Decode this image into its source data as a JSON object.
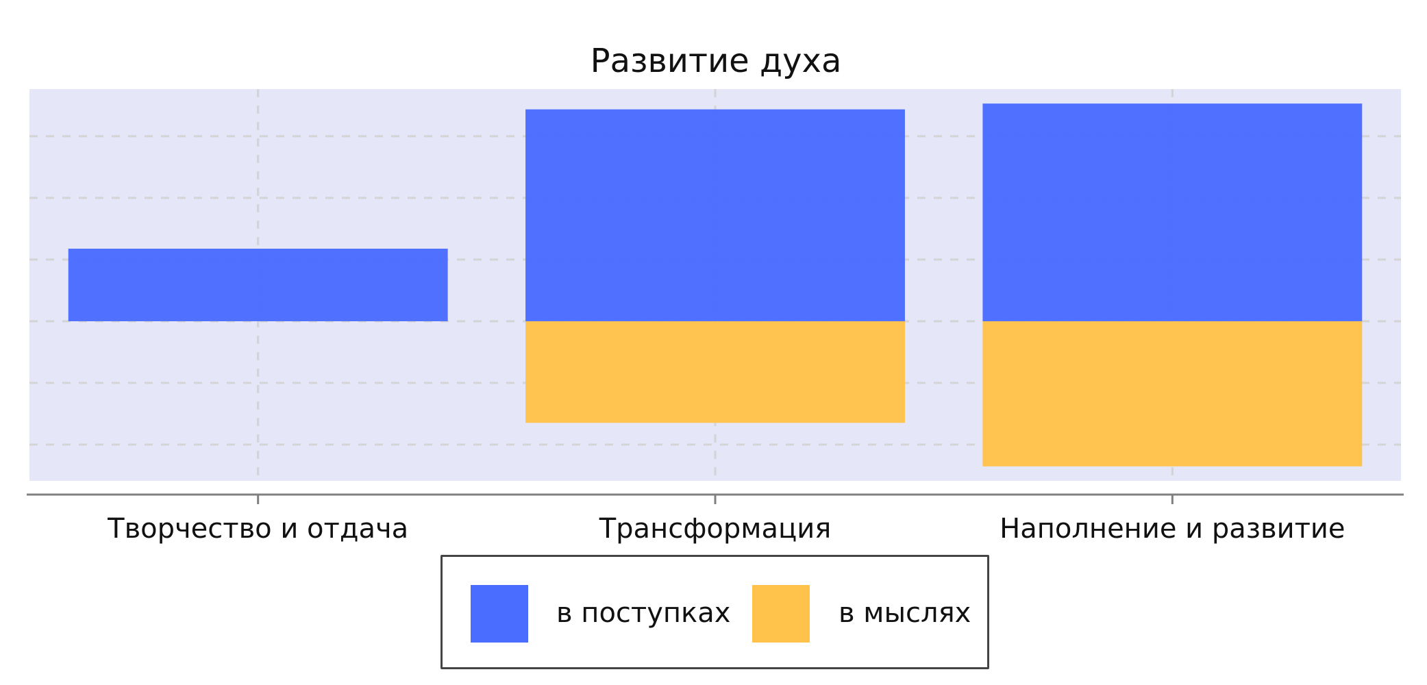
{
  "chart_data": {
    "type": "bar",
    "stacked": true,
    "title": "Развитие духа",
    "categories": [
      "Творчество и отдача",
      "Трансформация",
      "Наполнение и развитие"
    ],
    "series": [
      {
        "name": "в поступках",
        "color": "#4a6cff",
        "values": [
          2.5,
          7.3,
          7.5
        ]
      },
      {
        "name": "в мыслях",
        "color": "#ffc24a",
        "values": [
          0,
          -3.5,
          -5.0
        ]
      }
    ],
    "ylim": [
      -5.5,
      8.0
    ],
    "grid": true,
    "legend": "bottom-center",
    "plot_background": "#e5e6f8"
  }
}
